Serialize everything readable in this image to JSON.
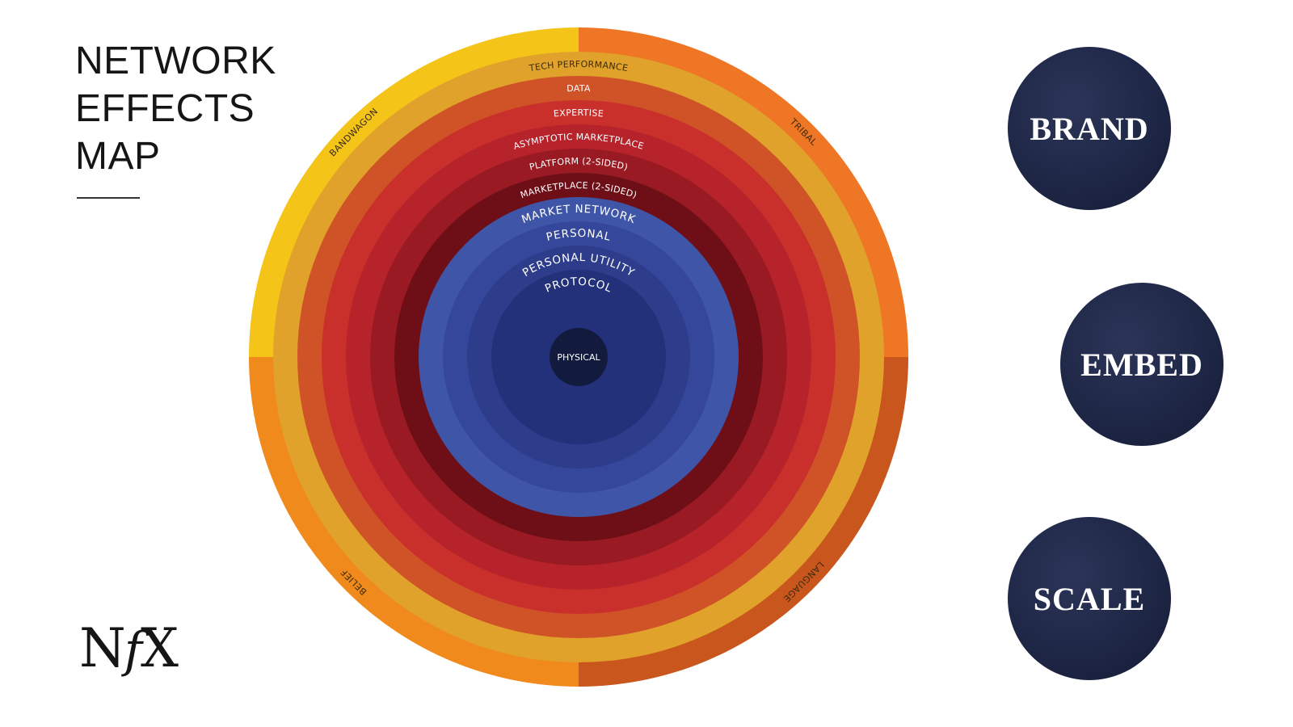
{
  "title": {
    "line1": "NETWORK",
    "line2": "EFFECTS",
    "line3": "MAP"
  },
  "logo": {
    "n": "N",
    "f": "f",
    "x": "X"
  },
  "quadrants": {
    "top_left": {
      "label": "BANDWAGON",
      "color": "#f4c419"
    },
    "top_right": {
      "label": "TRIBAL",
      "color": "#ee7625"
    },
    "bottom_left": {
      "label": "BELIEF",
      "color": "#f08a1c"
    },
    "bottom_right": {
      "label": "LANGUAGE",
      "color": "#c9561c"
    }
  },
  "rings": [
    {
      "label": "TECH PERFORMANCE",
      "color": "#e0a22b",
      "text_color": "#3a2a10"
    },
    {
      "label": "DATA",
      "color": "#cf5326",
      "text_color": "#ffffff"
    },
    {
      "label": "EXPERTISE",
      "color": "#c9302c",
      "text_color": "#ffffff"
    },
    {
      "label": "ASYMPTOTIC MARKETPLACE",
      "color": "#b6232a",
      "text_color": "#ffffff"
    },
    {
      "label": "PLATFORM (2-SIDED)",
      "color": "#9a1a24",
      "text_color": "#ffffff"
    },
    {
      "label": "MARKETPLACE (2-SIDED)",
      "color": "#6e0f18",
      "text_color": "#ffffff"
    },
    {
      "label": "MARKET NETWORK",
      "color": "#3f56a8",
      "text_color": "#ffffff"
    },
    {
      "label": "PERSONAL",
      "color": "#34479a",
      "text_color": "#ffffff"
    },
    {
      "label": "PERSONAL UTILITY",
      "color": "#2d3d8c",
      "text_color": "#ffffff"
    },
    {
      "label": "PROTOCOL",
      "color": "#23307a",
      "text_color": "#ffffff"
    }
  ],
  "core": {
    "label": "PHYSICAL",
    "color": "#121a3d",
    "text_color": "#ffffff"
  },
  "categories": [
    {
      "label": "BRAND"
    },
    {
      "label": "EMBED"
    },
    {
      "label": "SCALE"
    }
  ]
}
